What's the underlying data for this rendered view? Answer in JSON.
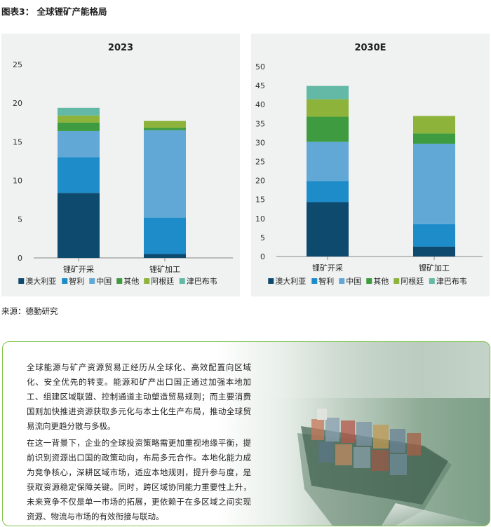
{
  "figure_title": "图表3： 全球锂矿产能格局",
  "source": "来源：德勤研究",
  "colors": {
    "panel_bg": "#f0f1f1",
    "series": [
      "#0e4a6e",
      "#1d8cc9",
      "#62a8d6",
      "#3f9b3f",
      "#8db33a",
      "#63b9a6"
    ]
  },
  "chart_data": [
    {
      "type": "bar",
      "stacked": true,
      "title": "2023",
      "categories": [
        "锂矿开采",
        "锂矿加工"
      ],
      "ylim": [
        0,
        25
      ],
      "yticks": [
        0,
        5,
        10,
        15,
        20,
        25
      ],
      "grid": false,
      "legend_position": "bottom",
      "series": [
        {
          "name": "澳大利亚",
          "values": [
            8.4,
            0.5
          ]
        },
        {
          "name": "智利",
          "values": [
            4.6,
            4.7
          ]
        },
        {
          "name": "中国",
          "values": [
            3.4,
            11.3
          ]
        },
        {
          "name": "其他",
          "values": [
            1.1,
            0.3
          ]
        },
        {
          "name": "阿根廷",
          "values": [
            0.9,
            0.9
          ]
        },
        {
          "name": "津巴布韦",
          "values": [
            1.0,
            0.0
          ]
        }
      ]
    },
    {
      "type": "bar",
      "stacked": true,
      "title": "2030E",
      "categories": [
        "锂矿开采",
        "锂矿加工"
      ],
      "ylim": [
        0,
        50
      ],
      "yticks": [
        0,
        5,
        10,
        15,
        20,
        25,
        30,
        35,
        40,
        45,
        50
      ],
      "grid": false,
      "legend_position": "bottom",
      "series": [
        {
          "name": "澳大利亚",
          "values": [
            14.3,
            2.6
          ]
        },
        {
          "name": "智利",
          "values": [
            5.6,
            5.9
          ]
        },
        {
          "name": "中国",
          "values": [
            10.3,
            21.2
          ]
        },
        {
          "name": "其他",
          "values": [
            6.6,
            2.7
          ]
        },
        {
          "name": "阿根廷",
          "values": [
            4.6,
            4.6
          ]
        },
        {
          "name": "津巴布韦",
          "values": [
            3.5,
            0.0
          ]
        }
      ]
    }
  ],
  "text_box": {
    "paragraph_1": "全球能源与矿产资源贸易正经历从全球化、高效配置向区域化、安全优先的转变。能源和矿产出口国正通过加强本地加工、组建区域联盟、控制通道主动塑造贸易规则；而主要消费国则加快推进资源获取多元化与本土化生产布局，推动全球贸易流向更趋分散与多极。",
    "paragraph_2": "在这一背景下，企业的全球投资策略需更加重视地缘平衡，提前识别资源出口国的政策动向，布局多元合作。本地化能力成为竞争核心，深耕区域市场，适应本地规则，提升参与度，是获取资源稳定保障关键。同时，跨区域协同能力重要性上升，未来竞争不仅是单一市场的拓展，更依赖于在多区域之间实现资源、物流与市场的有效衔接与联动。"
  }
}
